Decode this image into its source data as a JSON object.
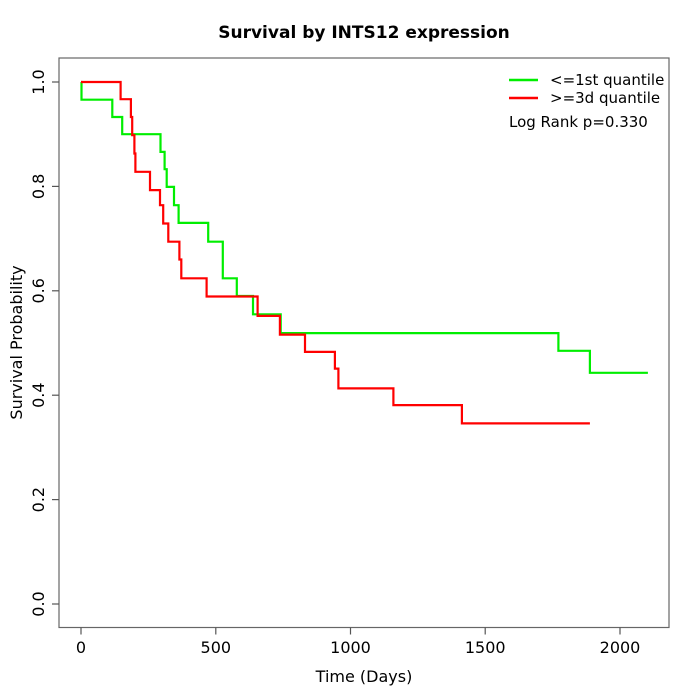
{
  "title": "Survival by INTS12 expression",
  "chart_data": {
    "type": "line",
    "subtype": "kaplan-meier-step-curves",
    "title": "Survival by INTS12 expression",
    "xlabel": "Time (Days)",
    "ylabel": "Survival Probability",
    "xlim": [
      0,
      2100
    ],
    "ylim": [
      0.0,
      1.0
    ],
    "xticks": [
      0,
      500,
      1000,
      1500,
      2000
    ],
    "xtick_labels": [
      "0",
      "500",
      "1000",
      "1500",
      "2000"
    ],
    "yticks": [
      0.0,
      0.2,
      0.4,
      0.6,
      0.8,
      1.0
    ],
    "ytick_labels": [
      "0.0",
      "0.2",
      "0.4",
      "0.6",
      "0.8",
      "1.0"
    ],
    "grid": false,
    "legend_position": "top-right",
    "annotation": "Log Rank p=0.330",
    "series": [
      {
        "name": "<=1st quantile",
        "color": "#00ee00",
        "end_time": 2103,
        "steps": [
          [
            0,
            1.0
          ],
          [
            2,
            0.966
          ],
          [
            116,
            0.933
          ],
          [
            153,
            0.9
          ],
          [
            295,
            0.866
          ],
          [
            310,
            0.833
          ],
          [
            318,
            0.799
          ],
          [
            345,
            0.764
          ],
          [
            362,
            0.73
          ],
          [
            472,
            0.694
          ],
          [
            526,
            0.624
          ],
          [
            578,
            0.59
          ],
          [
            638,
            0.555
          ],
          [
            741,
            0.519
          ],
          [
            1771,
            0.485
          ],
          [
            1888,
            0.443
          ]
        ]
      },
      {
        "name": ">=3d quantile",
        "color": "#ff0000",
        "end_time": 1888,
        "steps": [
          [
            0,
            1.0
          ],
          [
            147,
            0.967
          ],
          [
            185,
            0.933
          ],
          [
            190,
            0.898
          ],
          [
            198,
            0.863
          ],
          [
            202,
            0.828
          ],
          [
            256,
            0.793
          ],
          [
            293,
            0.764
          ],
          [
            305,
            0.729
          ],
          [
            324,
            0.694
          ],
          [
            365,
            0.66
          ],
          [
            372,
            0.624
          ],
          [
            466,
            0.589
          ],
          [
            655,
            0.552
          ],
          [
            738,
            0.516
          ],
          [
            831,
            0.483
          ],
          [
            942,
            0.451
          ],
          [
            955,
            0.413
          ],
          [
            1159,
            0.381
          ],
          [
            1413,
            0.346
          ]
        ]
      }
    ]
  }
}
